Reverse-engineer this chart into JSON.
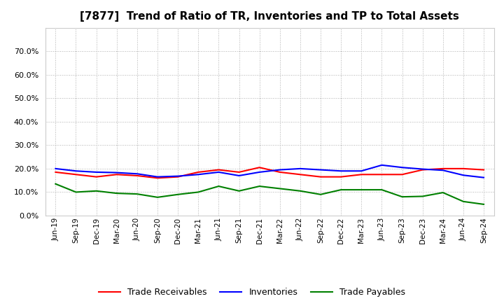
{
  "title": "[7877]  Trend of Ratio of TR, Inventories and TP to Total Assets",
  "x_labels": [
    "Jun-19",
    "Sep-19",
    "Dec-19",
    "Mar-20",
    "Jun-20",
    "Sep-20",
    "Dec-20",
    "Mar-21",
    "Jun-21",
    "Sep-21",
    "Dec-21",
    "Mar-22",
    "Jun-22",
    "Sep-22",
    "Dec-22",
    "Mar-23",
    "Jun-23",
    "Sep-23",
    "Dec-23",
    "Mar-24",
    "Jun-24",
    "Sep-24"
  ],
  "trade_receivables": [
    0.185,
    0.175,
    0.165,
    0.175,
    0.17,
    0.16,
    0.165,
    0.185,
    0.195,
    0.185,
    0.205,
    0.185,
    0.175,
    0.165,
    0.165,
    0.175,
    0.175,
    0.175,
    0.195,
    0.2,
    0.2,
    0.195
  ],
  "inventories": [
    0.2,
    0.19,
    0.185,
    0.183,
    0.178,
    0.165,
    0.168,
    0.175,
    0.185,
    0.17,
    0.185,
    0.195,
    0.2,
    0.195,
    0.19,
    0.19,
    0.215,
    0.205,
    0.198,
    0.193,
    0.172,
    0.162
  ],
  "trade_payables": [
    0.135,
    0.1,
    0.105,
    0.095,
    0.092,
    0.078,
    0.09,
    0.1,
    0.125,
    0.105,
    0.125,
    0.115,
    0.105,
    0.09,
    0.11,
    0.11,
    0.11,
    0.08,
    0.082,
    0.098,
    0.06,
    0.048
  ],
  "line_colors": {
    "trade_receivables": "#ff0000",
    "inventories": "#0000ff",
    "trade_payables": "#008000"
  },
  "ylim": [
    0.0,
    0.8
  ],
  "yticks": [
    0.0,
    0.1,
    0.2,
    0.3,
    0.4,
    0.5,
    0.6,
    0.7
  ],
  "background_color": "#ffffff",
  "grid_color": "#b0b0b0",
  "title_fontsize": 11,
  "legend_labels": [
    "Trade Receivables",
    "Inventories",
    "Trade Payables"
  ]
}
